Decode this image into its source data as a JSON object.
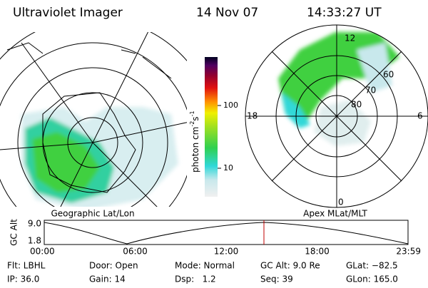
{
  "header": {
    "title": "Ultraviolet Imager",
    "date": "14 Nov 07",
    "time": "14:33:27 UT"
  },
  "colorbar": {
    "label": "photon cm",
    "exp1": "-2",
    "unit2": "s",
    "exp2": "-1",
    "ticks": [
      "100",
      "10"
    ]
  },
  "left_panel": {
    "label": "Geographic Lat/Lon"
  },
  "right_panel": {
    "label": "Apex MLat/MLT",
    "mlt": [
      "12",
      "18",
      "6",
      "0"
    ],
    "mlat": [
      "60",
      "70",
      "80"
    ]
  },
  "altitude_plot": {
    "axis_label": "GC Alt",
    "yticks": [
      "9.0",
      "1.8"
    ],
    "xticks": [
      "00:00",
      "06:00",
      "12:00",
      "18:00",
      "23:59"
    ]
  },
  "footer": {
    "rows": [
      [
        "Flt: LBHL",
        "Door: Open",
        "Mode: Normal",
        "GC Alt: 9.0 Re",
        "GLat: −82.5"
      ],
      [
        "IP: 36.0",
        "Gain: 14",
        "Dsp:   1.2",
        "Seq: 39",
        "GLon: 165.0"
      ]
    ]
  }
}
